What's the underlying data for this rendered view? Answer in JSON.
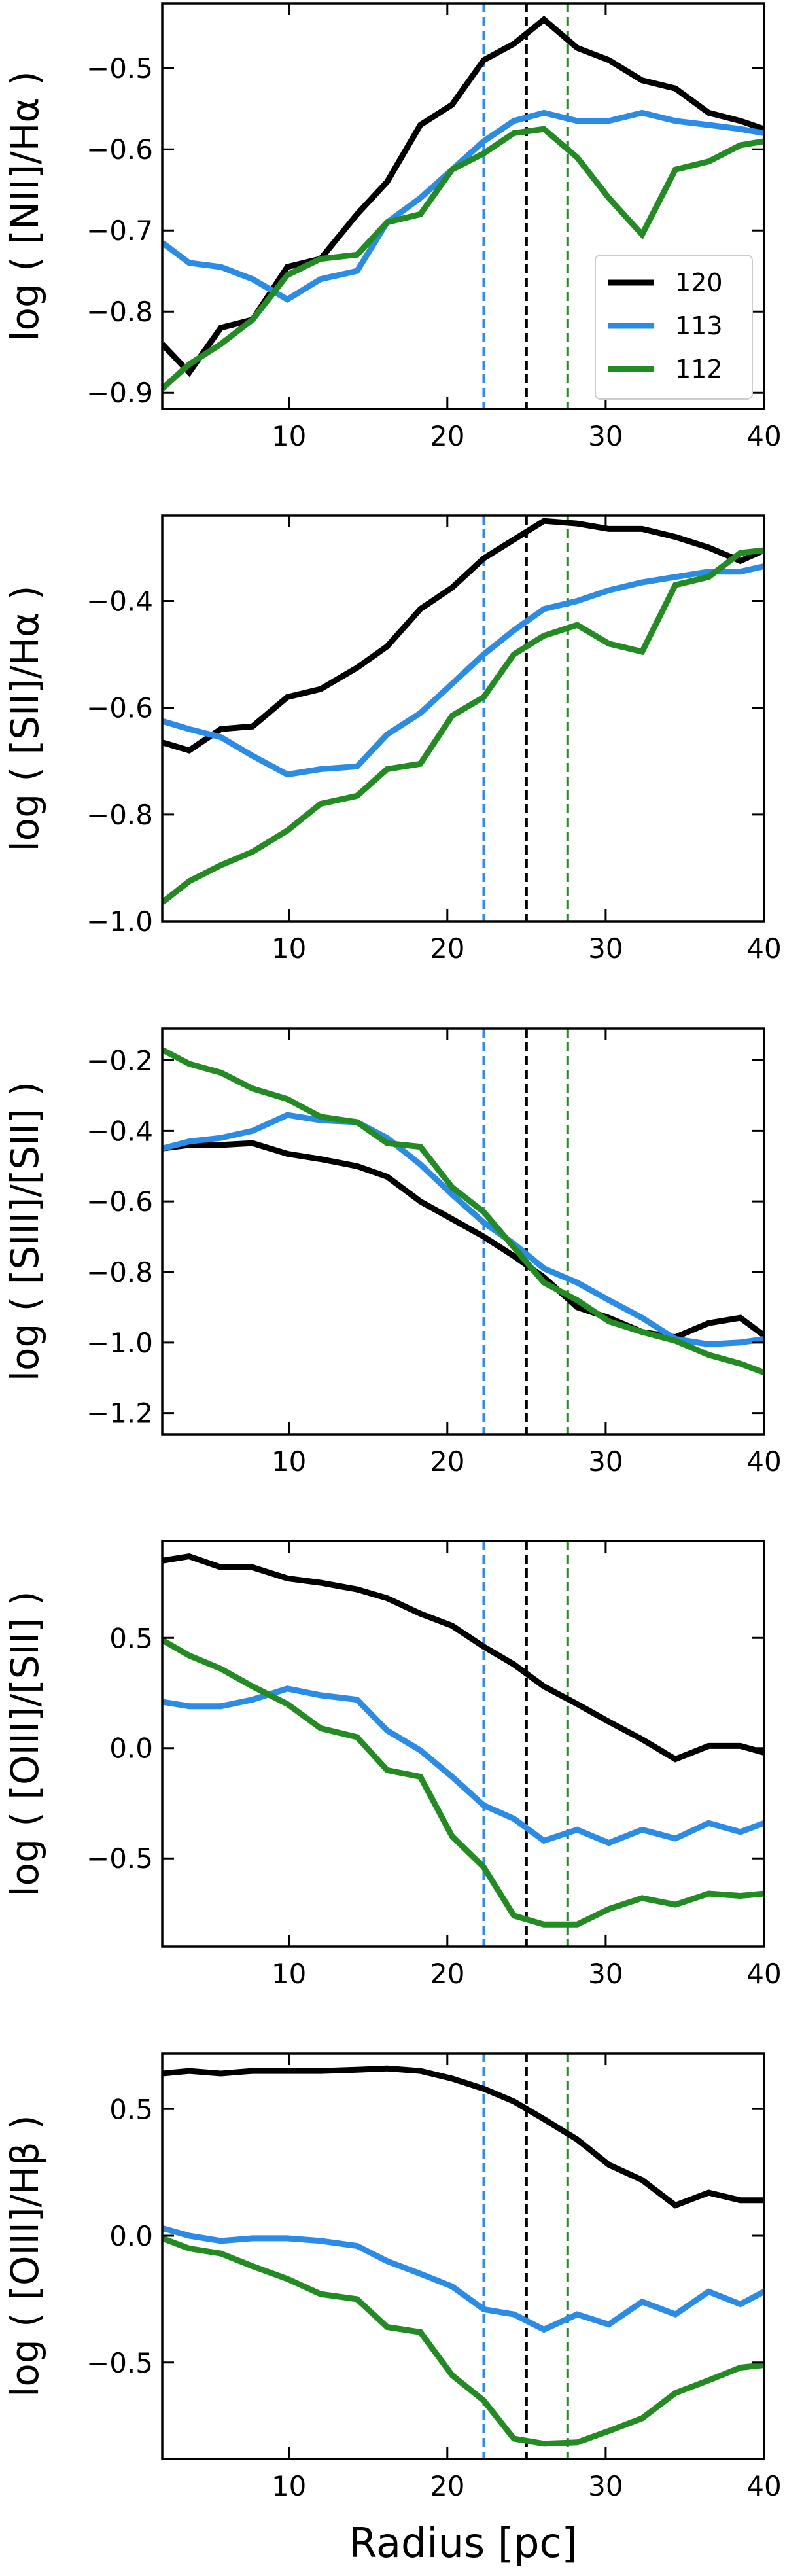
{
  "figure": {
    "xlabel": "Radius [pc]"
  },
  "chart_data": [
    {
      "type": "line",
      "ylabel": "log ( [NII]/Hα )",
      "xlim": [
        2,
        40
      ],
      "ylim": [
        -0.92,
        -0.42
      ],
      "xticks": [
        10,
        20,
        30,
        40
      ],
      "xtick_labels": [
        "10",
        "20",
        "30",
        "40"
      ],
      "show_xtick_labels": true,
      "yticks": [
        -0.9,
        -0.8,
        -0.7,
        -0.6,
        -0.5
      ],
      "ytick_labels": [
        "−0.9",
        "−0.8",
        "−0.7",
        "−0.6",
        "−0.5"
      ],
      "grid": false,
      "legend": {
        "placement": "lower-right"
      },
      "vlines": [
        {
          "x": 22.3,
          "color": "#1e90ff",
          "style": "dashed"
        },
        {
          "x": 25.0,
          "color": "#000000",
          "style": "dashed"
        },
        {
          "x": 27.6,
          "color": "#228b22",
          "style": "dashed"
        }
      ],
      "series": [
        {
          "name": "120",
          "color": "#000000",
          "x": [
            2,
            3.7,
            5.7,
            7.7,
            9.9,
            12,
            14.3,
            16.2,
            18.3,
            20.3,
            22.3,
            24.2,
            26.1,
            28.2,
            30.2,
            32.3,
            34.4,
            36.5,
            38.5,
            40
          ],
          "y": [
            -0.84,
            -0.875,
            -0.82,
            -0.81,
            -0.745,
            -0.735,
            -0.68,
            -0.64,
            -0.57,
            -0.545,
            -0.49,
            -0.47,
            -0.44,
            -0.475,
            -0.49,
            -0.515,
            -0.525,
            -0.555,
            -0.565,
            -0.575
          ]
        },
        {
          "name": "113",
          "color": "#2b8ce8",
          "x": [
            2,
            3.7,
            5.7,
            7.7,
            9.9,
            12,
            14.3,
            16.2,
            18.3,
            20.3,
            22.3,
            24.2,
            26.1,
            28.2,
            30.2,
            32.3,
            34.4,
            36.5,
            38.5,
            40
          ],
          "y": [
            -0.715,
            -0.74,
            -0.745,
            -0.76,
            -0.785,
            -0.76,
            -0.75,
            -0.69,
            -0.66,
            -0.625,
            -0.59,
            -0.565,
            -0.555,
            -0.565,
            -0.565,
            -0.555,
            -0.565,
            -0.57,
            -0.575,
            -0.58
          ]
        },
        {
          "name": "112",
          "color": "#228b22",
          "x": [
            2,
            3.7,
            5.7,
            7.7,
            9.9,
            12,
            14.3,
            16.2,
            18.3,
            20.3,
            22.3,
            24.2,
            26.1,
            28.2,
            30.2,
            32.3,
            34.4,
            36.5,
            38.5,
            40
          ],
          "y": [
            -0.895,
            -0.865,
            -0.84,
            -0.81,
            -0.755,
            -0.735,
            -0.73,
            -0.69,
            -0.68,
            -0.625,
            -0.605,
            -0.58,
            -0.575,
            -0.61,
            -0.66,
            -0.705,
            -0.625,
            -0.615,
            -0.595,
            -0.59
          ]
        }
      ]
    },
    {
      "type": "line",
      "ylabel": "log ( [SII]/Hα )",
      "xlim": [
        2,
        40
      ],
      "ylim": [
        -1.0,
        -0.24
      ],
      "xticks": [
        10,
        20,
        30,
        40
      ],
      "xtick_labels": [
        "10",
        "20",
        "30",
        "40"
      ],
      "show_xtick_labels": true,
      "yticks": [
        -1.0,
        -0.8,
        -0.6,
        -0.4
      ],
      "ytick_labels": [
        "−1.0",
        "−0.8",
        "−0.6",
        "−0.4"
      ],
      "grid": false,
      "vlines": [
        {
          "x": 22.3,
          "color": "#1e90ff",
          "style": "dashed"
        },
        {
          "x": 25.0,
          "color": "#000000",
          "style": "dashed"
        },
        {
          "x": 27.6,
          "color": "#228b22",
          "style": "dashed"
        }
      ],
      "series": [
        {
          "name": "120",
          "color": "#000000",
          "x": [
            2,
            3.7,
            5.7,
            7.7,
            9.9,
            12,
            14.3,
            16.2,
            18.3,
            20.3,
            22.3,
            24.2,
            26.1,
            28.2,
            30.2,
            32.3,
            34.4,
            36.5,
            38.5,
            40
          ],
          "y": [
            -0.665,
            -0.68,
            -0.64,
            -0.635,
            -0.58,
            -0.565,
            -0.525,
            -0.485,
            -0.415,
            -0.375,
            -0.32,
            -0.285,
            -0.25,
            -0.255,
            -0.265,
            -0.265,
            -0.28,
            -0.3,
            -0.325,
            -0.305
          ]
        },
        {
          "name": "113",
          "color": "#2b8ce8",
          "x": [
            2,
            3.7,
            5.7,
            7.7,
            9.9,
            12,
            14.3,
            16.2,
            18.3,
            20.3,
            22.3,
            24.2,
            26.1,
            28.2,
            30.2,
            32.3,
            34.4,
            36.5,
            38.5,
            40
          ],
          "y": [
            -0.625,
            -0.64,
            -0.655,
            -0.69,
            -0.725,
            -0.715,
            -0.71,
            -0.65,
            -0.61,
            -0.555,
            -0.5,
            -0.455,
            -0.415,
            -0.4,
            -0.38,
            -0.365,
            -0.355,
            -0.345,
            -0.345,
            -0.335
          ]
        },
        {
          "name": "112",
          "color": "#228b22",
          "x": [
            2,
            3.7,
            5.7,
            7.7,
            9.9,
            12,
            14.3,
            16.2,
            18.3,
            20.3,
            22.3,
            24.2,
            26.1,
            28.2,
            30.2,
            32.3,
            34.4,
            36.5,
            38.5,
            40
          ],
          "y": [
            -0.965,
            -0.925,
            -0.895,
            -0.87,
            -0.83,
            -0.78,
            -0.765,
            -0.715,
            -0.705,
            -0.615,
            -0.58,
            -0.5,
            -0.465,
            -0.445,
            -0.48,
            -0.495,
            -0.37,
            -0.355,
            -0.31,
            -0.305
          ]
        }
      ]
    },
    {
      "type": "line",
      "ylabel": "log ( [SIII]/[SII] )",
      "xlim": [
        2,
        40
      ],
      "ylim": [
        -1.26,
        -0.11
      ],
      "xticks": [
        10,
        20,
        30,
        40
      ],
      "xtick_labels": [
        "10",
        "20",
        "30",
        "40"
      ],
      "show_xtick_labels": true,
      "yticks": [
        -1.2,
        -1.0,
        -0.8,
        -0.6,
        -0.4,
        -0.2
      ],
      "ytick_labels": [
        "−1.2",
        "−1.0",
        "−0.8",
        "−0.6",
        "−0.4",
        "−0.2"
      ],
      "grid": false,
      "vlines": [
        {
          "x": 22.3,
          "color": "#1e90ff",
          "style": "dashed"
        },
        {
          "x": 25.0,
          "color": "#000000",
          "style": "dashed"
        },
        {
          "x": 27.6,
          "color": "#228b22",
          "style": "dashed"
        }
      ],
      "series": [
        {
          "name": "120",
          "color": "#000000",
          "x": [
            2,
            3.7,
            5.7,
            7.7,
            9.9,
            12,
            14.3,
            16.2,
            18.3,
            20.3,
            22.3,
            24.2,
            26.1,
            28.2,
            30.2,
            32.3,
            34.4,
            36.5,
            38.5,
            40
          ],
          "y": [
            -0.45,
            -0.44,
            -0.44,
            -0.435,
            -0.465,
            -0.48,
            -0.5,
            -0.53,
            -0.6,
            -0.65,
            -0.7,
            -0.755,
            -0.815,
            -0.9,
            -0.93,
            -0.97,
            -0.985,
            -0.945,
            -0.93,
            -0.98
          ]
        },
        {
          "name": "113",
          "color": "#2b8ce8",
          "x": [
            2,
            3.7,
            5.7,
            7.7,
            9.9,
            12,
            14.3,
            16.2,
            18.3,
            20.3,
            22.3,
            24.2,
            26.1,
            28.2,
            30.2,
            32.3,
            34.4,
            36.5,
            38.5,
            40
          ],
          "y": [
            -0.45,
            -0.43,
            -0.42,
            -0.4,
            -0.355,
            -0.37,
            -0.375,
            -0.42,
            -0.495,
            -0.58,
            -0.66,
            -0.72,
            -0.79,
            -0.83,
            -0.88,
            -0.93,
            -0.99,
            -1.005,
            -1.0,
            -0.99
          ]
        },
        {
          "name": "112",
          "color": "#228b22",
          "x": [
            2,
            3.7,
            5.7,
            7.7,
            9.9,
            12,
            14.3,
            16.2,
            18.3,
            20.3,
            22.3,
            24.2,
            26.1,
            28.2,
            30.2,
            32.3,
            34.4,
            36.5,
            38.5,
            40
          ],
          "y": [
            -0.17,
            -0.21,
            -0.235,
            -0.28,
            -0.31,
            -0.36,
            -0.375,
            -0.435,
            -0.445,
            -0.56,
            -0.63,
            -0.73,
            -0.83,
            -0.88,
            -0.94,
            -0.97,
            -0.995,
            -1.035,
            -1.06,
            -1.085
          ]
        }
      ]
    },
    {
      "type": "line",
      "ylabel": "log ( [OIII]/[SII] )",
      "xlim": [
        2,
        40
      ],
      "ylim": [
        -0.9,
        0.94
      ],
      "xticks": [
        10,
        20,
        30,
        40
      ],
      "xtick_labels": [
        "10",
        "20",
        "30",
        "40"
      ],
      "show_xtick_labels": true,
      "yticks": [
        -0.5,
        0.0,
        0.5
      ],
      "ytick_labels": [
        "−0.5",
        "0.0",
        "0.5"
      ],
      "grid": false,
      "vlines": [
        {
          "x": 22.3,
          "color": "#1e90ff",
          "style": "dashed"
        },
        {
          "x": 25.0,
          "color": "#000000",
          "style": "dashed"
        },
        {
          "x": 27.6,
          "color": "#228b22",
          "style": "dashed"
        }
      ],
      "series": [
        {
          "name": "120",
          "color": "#000000",
          "x": [
            2,
            3.7,
            5.7,
            7.7,
            9.9,
            12,
            14.3,
            16.2,
            18.3,
            20.3,
            22.3,
            24.2,
            26.1,
            28.2,
            30.2,
            32.3,
            34.4,
            36.5,
            38.5,
            40
          ],
          "y": [
            0.85,
            0.87,
            0.82,
            0.82,
            0.77,
            0.75,
            0.72,
            0.68,
            0.61,
            0.555,
            0.46,
            0.38,
            0.28,
            0.2,
            0.12,
            0.04,
            -0.05,
            0.01,
            0.01,
            -0.02
          ]
        },
        {
          "name": "113",
          "color": "#2b8ce8",
          "x": [
            2,
            3.7,
            5.7,
            7.7,
            9.9,
            12,
            14.3,
            16.2,
            18.3,
            20.3,
            22.3,
            24.2,
            26.1,
            28.2,
            30.2,
            32.3,
            34.4,
            36.5,
            38.5,
            40
          ],
          "y": [
            0.21,
            0.19,
            0.19,
            0.22,
            0.27,
            0.24,
            0.22,
            0.08,
            -0.01,
            -0.13,
            -0.26,
            -0.32,
            -0.42,
            -0.37,
            -0.43,
            -0.37,
            -0.41,
            -0.34,
            -0.38,
            -0.34
          ]
        },
        {
          "name": "112",
          "color": "#228b22",
          "x": [
            2,
            3.7,
            5.7,
            7.7,
            9.9,
            12,
            14.3,
            16.2,
            18.3,
            20.3,
            22.3,
            24.2,
            26.1,
            28.2,
            30.2,
            32.3,
            34.4,
            36.5,
            38.5,
            40
          ],
          "y": [
            0.49,
            0.42,
            0.36,
            0.28,
            0.2,
            0.09,
            0.05,
            -0.1,
            -0.13,
            -0.4,
            -0.54,
            -0.76,
            -0.8,
            -0.8,
            -0.73,
            -0.68,
            -0.71,
            -0.66,
            -0.67,
            -0.66
          ]
        }
      ]
    },
    {
      "type": "line",
      "ylabel": "log ( [OIII]/Hβ )",
      "xlim": [
        2,
        40
      ],
      "ylim": [
        -0.88,
        0.72
      ],
      "xticks": [
        10,
        20,
        30,
        40
      ],
      "xtick_labels": [
        "10",
        "20",
        "30",
        "40"
      ],
      "show_xtick_labels": true,
      "yticks": [
        -0.5,
        0.0,
        0.5
      ],
      "ytick_labels": [
        "−0.5",
        "0.0",
        "0.5"
      ],
      "grid": false,
      "vlines": [
        {
          "x": 22.3,
          "color": "#1e90ff",
          "style": "dashed"
        },
        {
          "x": 25.0,
          "color": "#000000",
          "style": "dashed"
        },
        {
          "x": 27.6,
          "color": "#228b22",
          "style": "dashed"
        }
      ],
      "series": [
        {
          "name": "120",
          "color": "#000000",
          "x": [
            2,
            3.7,
            5.7,
            7.7,
            9.9,
            12,
            14.3,
            16.2,
            18.3,
            20.3,
            22.3,
            24.2,
            26.1,
            28.2,
            30.2,
            32.3,
            34.4,
            36.5,
            38.5,
            40
          ],
          "y": [
            0.64,
            0.65,
            0.64,
            0.65,
            0.65,
            0.65,
            0.655,
            0.66,
            0.65,
            0.62,
            0.58,
            0.53,
            0.46,
            0.38,
            0.28,
            0.22,
            0.12,
            0.17,
            0.14,
            0.14
          ]
        },
        {
          "name": "113",
          "color": "#2b8ce8",
          "x": [
            2,
            3.7,
            5.7,
            7.7,
            9.9,
            12,
            14.3,
            16.2,
            18.3,
            20.3,
            22.3,
            24.2,
            26.1,
            28.2,
            30.2,
            32.3,
            34.4,
            36.5,
            38.5,
            40
          ],
          "y": [
            0.03,
            0.0,
            -0.02,
            -0.01,
            -0.01,
            -0.02,
            -0.04,
            -0.1,
            -0.15,
            -0.2,
            -0.29,
            -0.31,
            -0.37,
            -0.31,
            -0.35,
            -0.26,
            -0.31,
            -0.22,
            -0.27,
            -0.22
          ]
        },
        {
          "name": "112",
          "color": "#228b22",
          "x": [
            2,
            3.7,
            5.7,
            7.7,
            9.9,
            12,
            14.3,
            16.2,
            18.3,
            20.3,
            22.3,
            24.2,
            26.1,
            28.2,
            30.2,
            32.3,
            34.4,
            36.5,
            38.5,
            40
          ],
          "y": [
            -0.01,
            -0.05,
            -0.07,
            -0.12,
            -0.17,
            -0.23,
            -0.25,
            -0.36,
            -0.38,
            -0.55,
            -0.65,
            -0.8,
            -0.82,
            -0.815,
            -0.77,
            -0.72,
            -0.62,
            -0.57,
            -0.52,
            -0.51
          ]
        }
      ]
    }
  ]
}
